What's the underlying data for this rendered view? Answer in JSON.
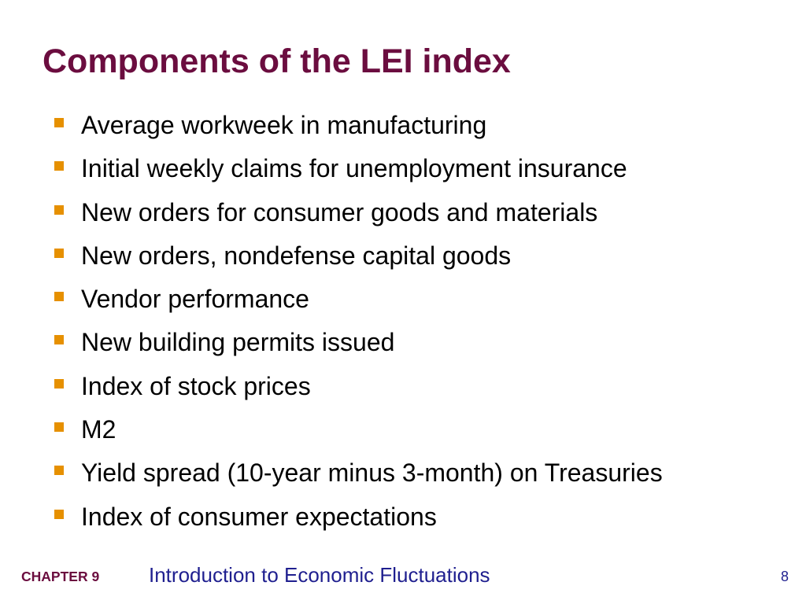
{
  "slide": {
    "title": "Components of the LEI index",
    "bullets": [
      "Average workweek in manufacturing",
      "Initial weekly claims for unemployment insurance",
      "New orders for consumer goods and materials",
      "New orders, nondefense capital goods",
      "Vendor performance",
      "New building permits issued",
      "Index of stock prices",
      "M2",
      "Yield spread (10-year minus 3-month) on Treasuries",
      "Index of consumer expectations"
    ],
    "bullet_icon": "orange-square-bullet-icon"
  },
  "footer": {
    "chapter": "CHAPTER 9",
    "subtitle": "Introduction to Economic Fluctuations",
    "page_number": "8"
  },
  "colors": {
    "title": "#6b0d3f",
    "bullet_marker": "#e69000",
    "body_text": "#000000",
    "footer_chapter": "#6b0d3f",
    "footer_subtitle": "#1f1f8f"
  }
}
